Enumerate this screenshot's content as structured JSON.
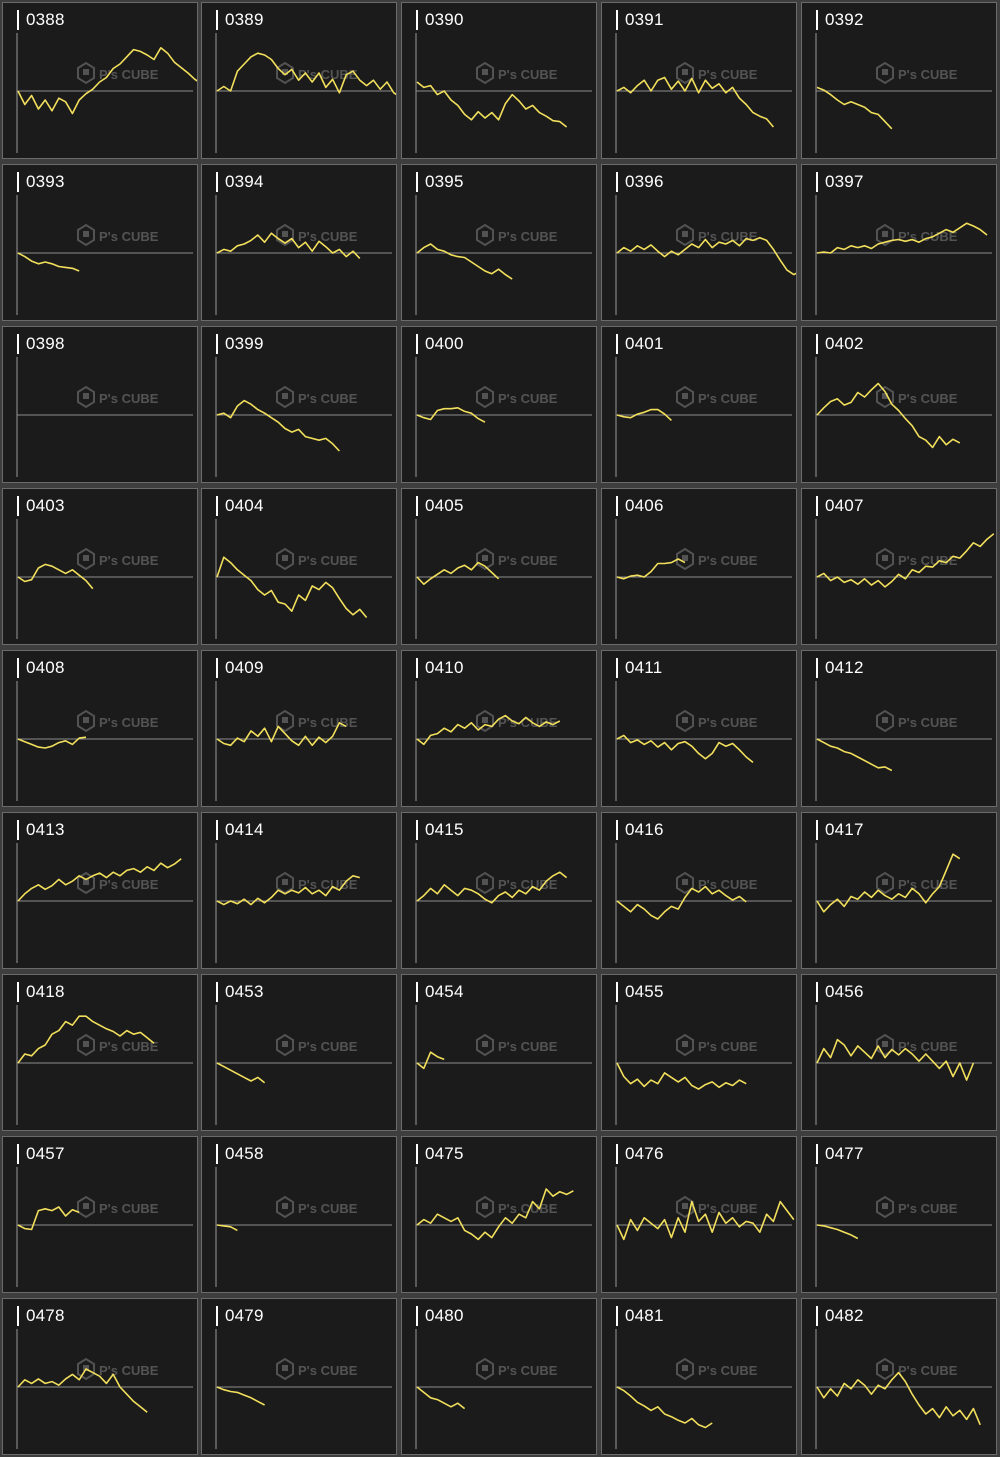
{
  "colors": {
    "line": "#f2df5c",
    "baseline": "#8c8c8c",
    "axis": "#9a9a9a",
    "panel": "#1b1b1b"
  },
  "watermark": {
    "brand": "P's CUBE",
    "icon": "cube-logo-icon"
  },
  "chart_data": [
    {
      "type": "line",
      "title": "0388",
      "series": [
        {
          "values": [
            0,
            -1.5,
            -0.5,
            -2,
            -1,
            -2.2,
            -0.8,
            -1.2,
            -2.5,
            -1,
            -0.3,
            0.2,
            1,
            1.5,
            2.5,
            3,
            3.8,
            4.6,
            4.4,
            4,
            3.5,
            4.8,
            4.2,
            3.2,
            2.6,
            2,
            1.3,
            0.8,
            1.8,
            2.7,
            3.3,
            2.6,
            3,
            2.4
          ]
        }
      ]
    },
    {
      "type": "line",
      "title": "0389",
      "series": [
        {
          "values": [
            0,
            0.5,
            0,
            2.2,
            3,
            3.8,
            4.2,
            4,
            3.5,
            2.5,
            1.8,
            2.4,
            1.2,
            2,
            1,
            2,
            0.4,
            1.3,
            -0.2,
            1.8,
            2.2,
            1.2,
            0.6,
            1.2,
            0.2,
            1,
            -0.2,
            -0.7,
            -0.2,
            -1.6,
            -3
          ]
        }
      ]
    },
    {
      "type": "line",
      "title": "0390",
      "series": [
        {
          "values": [
            1,
            0.4,
            0.6,
            -0.4,
            0,
            -1,
            -1.6,
            -2.6,
            -3.2,
            -2.3,
            -3,
            -2.4,
            -3.2,
            -1.4,
            -0.4,
            -1.1,
            -2,
            -1.6,
            -2.4,
            -2.8,
            -3.3,
            -3.4,
            -4
          ]
        }
      ]
    },
    {
      "type": "line",
      "title": "0391",
      "series": [
        {
          "values": [
            0,
            0.4,
            -0.2,
            0.6,
            1.2,
            0,
            1.2,
            1.5,
            0.2,
            1.1,
            0,
            1.4,
            -0.2,
            1.2,
            0.3,
            0.8,
            -0.2,
            0.4,
            -0.8,
            -1.5,
            -2.4,
            -2.8,
            -3.1,
            -4
          ]
        }
      ]
    },
    {
      "type": "line",
      "title": "0392",
      "series": [
        {
          "values": [
            0.4,
            0.1,
            -0.4,
            -1,
            -1.5,
            -1.2,
            -1.5,
            -1.8,
            -2.4,
            -2.6,
            -3.4,
            -4.2
          ]
        }
      ]
    },
    {
      "type": "line",
      "title": "0393",
      "series": [
        {
          "values": [
            0,
            -0.4,
            -0.9,
            -1.2,
            -1,
            -1.2,
            -1.5,
            -1.6,
            -1.7,
            -2
          ]
        }
      ]
    },
    {
      "type": "line",
      "title": "0394",
      "series": [
        {
          "values": [
            0,
            0.4,
            0.2,
            0.8,
            1,
            1.4,
            2,
            1.2,
            2.2,
            1.6,
            1.1,
            1.6,
            0.6,
            1.2,
            0.2,
            1.3,
            0.7,
            0,
            0.4,
            -0.4,
            0.2,
            -0.6
          ]
        }
      ]
    },
    {
      "type": "line",
      "title": "0395",
      "series": [
        {
          "values": [
            0,
            0.6,
            1,
            0.4,
            0.2,
            -0.2,
            -0.4,
            -0.5,
            -1,
            -1.5,
            -2,
            -2.3,
            -1.8,
            -2.4,
            -2.9
          ]
        }
      ]
    },
    {
      "type": "line",
      "title": "0396",
      "series": [
        {
          "values": [
            0,
            0.6,
            0.2,
            0.8,
            0.4,
            0.9,
            0.2,
            -0.4,
            0.2,
            -0.2,
            0.4,
            1,
            0.6,
            1.5,
            0.6,
            1.2,
            1,
            1.4,
            0.8,
            1.6,
            1.4,
            1.7,
            1.4,
            0.4,
            -0.8,
            -1.9,
            -2.4,
            -2
          ]
        }
      ]
    },
    {
      "type": "line",
      "title": "0397",
      "series": [
        {
          "values": [
            0,
            0.1,
            0,
            0.6,
            0.4,
            0.8,
            0.6,
            0.8,
            0.5,
            1,
            1.2,
            1.4,
            1.5,
            1.3,
            1.5,
            1.2,
            1.6,
            1.8,
            2.2,
            2.6,
            2.3,
            2.8,
            3.3,
            3,
            2.6,
            2
          ]
        }
      ]
    },
    {
      "type": "line",
      "title": "0398",
      "series": [
        {
          "values": []
        }
      ]
    },
    {
      "type": "line",
      "title": "0399",
      "series": [
        {
          "values": [
            0,
            0.2,
            -0.3,
            1,
            1.6,
            1.2,
            0.6,
            0.2,
            -0.3,
            -0.8,
            -1.5,
            -1.9,
            -1.6,
            -2.4,
            -2.6,
            -2.8,
            -2.6,
            -3.2,
            -4
          ]
        }
      ]
    },
    {
      "type": "line",
      "title": "0400",
      "series": [
        {
          "values": [
            0,
            -0.3,
            -0.5,
            0.5,
            0.7,
            0.7,
            0.8,
            0.4,
            0.2,
            -0.4,
            -0.8
          ]
        }
      ]
    },
    {
      "type": "line",
      "title": "0401",
      "series": [
        {
          "values": [
            0,
            -0.2,
            -0.3,
            0.1,
            0.3,
            0.6,
            0.6,
            0.1,
            -0.6
          ]
        }
      ]
    },
    {
      "type": "line",
      "title": "0402",
      "series": [
        {
          "values": [
            0,
            0.8,
            1.5,
            1.8,
            1.1,
            1.4,
            2.5,
            2,
            2.8,
            3.5,
            2.6,
            1.2,
            0.5,
            -0.4,
            -1.2,
            -2.4,
            -2.8,
            -3.6,
            -2.4,
            -3.3,
            -2.7,
            -3.1
          ]
        }
      ]
    },
    {
      "type": "line",
      "title": "0403",
      "series": [
        {
          "values": [
            0,
            -0.5,
            -0.3,
            1,
            1.4,
            1.2,
            0.8,
            0.4,
            0.8,
            0.2,
            -0.4,
            -1.3
          ]
        }
      ]
    },
    {
      "type": "line",
      "title": "0404",
      "series": [
        {
          "values": [
            0,
            2.2,
            1.6,
            0.8,
            0.2,
            -0.4,
            -1.4,
            -2,
            -1.5,
            -2.8,
            -3,
            -3.8,
            -2,
            -2.6,
            -1,
            -1.4,
            -0.6,
            -1.2,
            -2.4,
            -3.5,
            -4.2,
            -3.6,
            -4.5
          ]
        }
      ]
    },
    {
      "type": "line",
      "title": "0405",
      "series": [
        {
          "values": [
            0,
            -0.8,
            -0.2,
            0.3,
            0.8,
            0.4,
            1,
            1.3,
            0.8,
            1.6,
            1.2,
            0.5,
            -0.2
          ]
        }
      ]
    },
    {
      "type": "line",
      "title": "0406",
      "series": [
        {
          "values": [
            0,
            -0.2,
            0.1,
            0.2,
            0,
            0.6,
            1.5,
            1.5,
            1.6,
            2,
            1.6
          ]
        }
      ]
    },
    {
      "type": "line",
      "title": "0407",
      "series": [
        {
          "values": [
            0,
            0.4,
            -0.4,
            0,
            -0.6,
            -0.3,
            -0.8,
            -0.2,
            -0.9,
            -0.4,
            -1.1,
            -0.5,
            0.3,
            -0.2,
            0.8,
            0.5,
            1.2,
            1.1,
            1.8,
            1.6,
            2.3,
            2.1,
            2.9,
            3.8,
            3.4,
            4.2,
            4.8
          ]
        }
      ]
    },
    {
      "type": "line",
      "title": "0408",
      "series": [
        {
          "values": [
            0,
            -0.3,
            -0.6,
            -0.9,
            -1,
            -0.8,
            -0.4,
            -0.2,
            -0.6,
            0.1,
            0.2
          ]
        }
      ]
    },
    {
      "type": "line",
      "title": "0409",
      "series": [
        {
          "values": [
            0,
            -0.5,
            -0.7,
            0.1,
            -0.3,
            0.9,
            0.3,
            1.2,
            -0.3,
            1.4,
            0.6,
            -0.2,
            -0.7,
            0.3,
            -0.7,
            0.2,
            -0.4,
            0.3,
            1.8,
            1.4
          ]
        }
      ]
    },
    {
      "type": "line",
      "title": "0410",
      "series": [
        {
          "values": [
            0,
            -0.6,
            0.4,
            0.6,
            1.2,
            0.8,
            1.6,
            1.2,
            1.8,
            1,
            1.6,
            1.4,
            2.2,
            2.6,
            2,
            1.7,
            2.4,
            1.8,
            1.4,
            1.9,
            1.6,
            2
          ]
        }
      ]
    },
    {
      "type": "line",
      "title": "0411",
      "series": [
        {
          "values": [
            0,
            0.4,
            -0.4,
            -0.1,
            -0.6,
            -0.2,
            -0.9,
            -0.4,
            -1.2,
            -0.5,
            -0.3,
            -0.8,
            -1.6,
            -2.2,
            -1.6,
            -0.4,
            -0.8,
            -0.5,
            -1.2,
            -2,
            -2.6
          ]
        }
      ]
    },
    {
      "type": "line",
      "title": "0412",
      "series": [
        {
          "values": [
            0,
            -0.4,
            -0.8,
            -1,
            -1.4,
            -1.6,
            -2,
            -2.4,
            -2.8,
            -3.2,
            -3.1,
            -3.5
          ]
        }
      ]
    },
    {
      "type": "line",
      "title": "0413",
      "series": [
        {
          "values": [
            0,
            0.8,
            1.4,
            1.8,
            1.3,
            1.7,
            2.4,
            1.8,
            2.2,
            2.8,
            2.4,
            2.8,
            3.1,
            2.6,
            3.2,
            2.8,
            3.4,
            3.6,
            3.2,
            3.8,
            3.4,
            4.2,
            3.7,
            4.1,
            4.7
          ]
        }
      ]
    },
    {
      "type": "line",
      "title": "0414",
      "series": [
        {
          "values": [
            0,
            -0.4,
            0,
            -0.3,
            0.2,
            -0.4,
            0.3,
            -0.2,
            0.4,
            1.2,
            0.8,
            1.2,
            0.9,
            1.5,
            0.8,
            1.2,
            0.6,
            1.6,
            1.2,
            2.2,
            2.8,
            2.6
          ]
        }
      ]
    },
    {
      "type": "line",
      "title": "0415",
      "series": [
        {
          "values": [
            0,
            0.6,
            1.4,
            0.8,
            1.8,
            1.2,
            0.6,
            1.4,
            1.2,
            0.8,
            0.2,
            -0.2,
            0.6,
            1,
            0.4,
            1.2,
            0.8,
            1.6,
            1.2,
            2.2,
            2.8,
            3.2,
            2.6
          ]
        }
      ]
    },
    {
      "type": "line",
      "title": "0416",
      "series": [
        {
          "values": [
            0,
            -0.6,
            -1.2,
            -0.4,
            -0.9,
            -1.6,
            -2,
            -1.2,
            -0.6,
            -0.9,
            0.4,
            1.4,
            1,
            1.6,
            0.8,
            1.2,
            0.6,
            0.1,
            0.5,
            -0.1
          ]
        }
      ]
    },
    {
      "type": "line",
      "title": "0417",
      "series": [
        {
          "values": [
            0,
            -1.2,
            -0.4,
            0.2,
            -0.6,
            0.5,
            0.2,
            1,
            0.4,
            1.2,
            0.6,
            0.2,
            0.8,
            0.4,
            1.4,
            0.8,
            -0.2,
            0.8,
            1.6,
            3.4,
            5.2,
            4.7
          ]
        }
      ]
    },
    {
      "type": "line",
      "title": "0418",
      "series": [
        {
          "values": [
            0,
            1,
            0.8,
            1.6,
            2,
            3.2,
            3.6,
            4.6,
            4.2,
            5.2,
            5.2,
            4.6,
            4.2,
            3.8,
            3.5,
            3,
            3.6,
            3.2,
            3.4,
            2.8,
            2.2
          ]
        }
      ]
    },
    {
      "type": "line",
      "title": "0453",
      "series": [
        {
          "values": [
            0,
            -0.4,
            -0.8,
            -1.2,
            -1.6,
            -2,
            -1.6,
            -2.2
          ]
        }
      ]
    },
    {
      "type": "line",
      "title": "0454",
      "series": [
        {
          "values": [
            0,
            -0.6,
            1.2,
            0.7,
            0.4
          ]
        }
      ]
    },
    {
      "type": "line",
      "title": "0455",
      "series": [
        {
          "values": [
            0,
            -1.5,
            -2.3,
            -1.8,
            -2.6,
            -1.9,
            -2.3,
            -1.1,
            -1.6,
            -2.1,
            -1.6,
            -2.5,
            -2.9,
            -2.4,
            -2.1,
            -2.7,
            -2.2,
            -2.5,
            -1.9,
            -2.3
          ]
        }
      ]
    },
    {
      "type": "line",
      "title": "0456",
      "series": [
        {
          "values": [
            0,
            1.6,
            0.6,
            2.6,
            2,
            0.8,
            1.9,
            1.2,
            0.5,
            1.9,
            0.6,
            1.5,
            0.9,
            1.6,
            1,
            0.2,
            1,
            0.2,
            -0.6,
            0.2,
            -1.5,
            0,
            -1.9,
            0
          ]
        }
      ]
    },
    {
      "type": "line",
      "title": "0457",
      "series": [
        {
          "values": [
            0,
            -0.4,
            -0.5,
            1.6,
            1.8,
            1.6,
            2,
            1,
            1.7,
            1.4
          ]
        }
      ]
    },
    {
      "type": "line",
      "title": "0458",
      "series": [
        {
          "values": [
            0,
            -0.1,
            -0.2,
            -0.6
          ]
        }
      ]
    },
    {
      "type": "line",
      "title": "0475",
      "series": [
        {
          "values": [
            0,
            0.6,
            0.2,
            1.2,
            0.8,
            0.4,
            0.8,
            -0.6,
            -1,
            -1.6,
            -0.8,
            -1.4,
            -0.2,
            0.8,
            0.2,
            1.2,
            0.8,
            2.6,
            1.8,
            4,
            3.2,
            3.7,
            3.4,
            3.8
          ]
        }
      ]
    },
    {
      "type": "line",
      "title": "0476",
      "series": [
        {
          "values": [
            0,
            -1.6,
            0.6,
            -0.6,
            0.8,
            0.2,
            -0.4,
            0.6,
            -1.4,
            0.8,
            -0.8,
            2.6,
            0.4,
            1.2,
            -0.8,
            1.4,
            0.2,
            0.8,
            -0.2,
            0.4,
            0.2,
            -0.8,
            1.2,
            0.4,
            2.6,
            1.6,
            0.6
          ]
        }
      ]
    },
    {
      "type": "line",
      "title": "0477",
      "series": [
        {
          "values": [
            0,
            -0.1,
            -0.3,
            -0.5,
            -0.8,
            -1.1,
            -1.5
          ]
        }
      ]
    },
    {
      "type": "line",
      "title": "0478",
      "series": [
        {
          "values": [
            0,
            0.8,
            0.4,
            0.9,
            0.4,
            0.6,
            0.2,
            0.9,
            1.4,
            0.8,
            2,
            1.6,
            1.2,
            0.4,
            1.4,
            0,
            -0.8,
            -1.6,
            -2.2,
            -2.8
          ]
        }
      ]
    },
    {
      "type": "line",
      "title": "0479",
      "series": [
        {
          "values": [
            0,
            -0.3,
            -0.5,
            -0.6,
            -0.9,
            -1.2,
            -1.6,
            -2
          ]
        }
      ]
    },
    {
      "type": "line",
      "title": "0480",
      "series": [
        {
          "values": [
            0,
            -0.6,
            -1.2,
            -1.4,
            -1.8,
            -2.2,
            -1.8,
            -2.4
          ]
        }
      ]
    },
    {
      "type": "line",
      "title": "0481",
      "series": [
        {
          "values": [
            0,
            -0.4,
            -1,
            -1.7,
            -2.1,
            -2.6,
            -2.2,
            -3,
            -3.3,
            -3.7,
            -4,
            -3.5,
            -4.2,
            -4.5,
            -4
          ]
        }
      ]
    },
    {
      "type": "line",
      "title": "0482",
      "series": [
        {
          "values": [
            0,
            -1.2,
            -0.2,
            -1,
            0.4,
            -0.2,
            0.8,
            0.2,
            -0.8,
            0.2,
            -0.2,
            0.8,
            1.6,
            0.6,
            -0.8,
            -2,
            -3,
            -2.4,
            -3.4,
            -2.2,
            -3.2,
            -2.6,
            -3.6,
            -2.4,
            -4.2
          ]
        }
      ]
    }
  ]
}
